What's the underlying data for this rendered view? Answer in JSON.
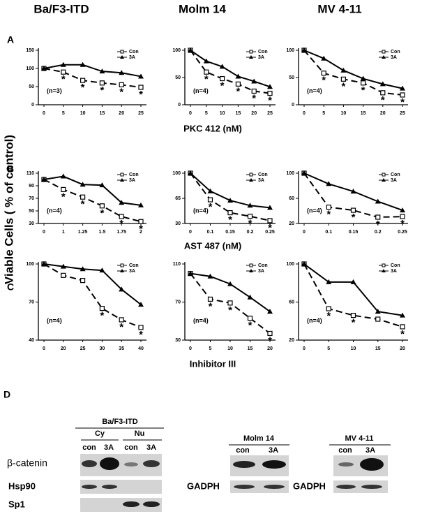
{
  "columns": [
    "Ba/F3-ITD",
    "Molm 14",
    "MV 4-11"
  ],
  "panels": [
    "A",
    "B",
    "C",
    "D"
  ],
  "y_axis_label": "Viable Cells ( % of control)",
  "row_axis_labels": [
    "PKC 412 (nM)",
    "AST 487 (nM)",
    "Inhibitor III"
  ],
  "chart_data": [
    {
      "type": "line",
      "categories": [
        "0",
        "5",
        "10",
        "15",
        "20",
        "25"
      ],
      "ylim": [
        0,
        150
      ],
      "yticks": [
        0,
        50,
        100,
        150
      ],
      "note": "(n=3)",
      "legend": "upper right",
      "series": [
        {
          "name": "Con",
          "color": "#000",
          "line_style": "dashed",
          "marker": "square",
          "values": [
            100,
            90,
            67,
            60,
            55,
            48
          ]
        },
        {
          "name": "3A",
          "color": "#000",
          "line_style": "solid",
          "marker": "triangle",
          "values": [
            100,
            110,
            110,
            92,
            88,
            78
          ]
        }
      ],
      "annotations": [
        null,
        "*",
        "*",
        "*",
        "*",
        "*"
      ]
    },
    {
      "type": "line",
      "categories": [
        "0",
        "5",
        "10",
        "15",
        "20",
        "25"
      ],
      "ylim": [
        0,
        100
      ],
      "yticks": [
        0,
        50,
        100
      ],
      "note": "(n=4)",
      "legend": "upper right",
      "series": [
        {
          "name": "Con",
          "color": "#000",
          "line_style": "dashed",
          "marker": "square",
          "values": [
            100,
            60,
            48,
            38,
            25,
            21
          ]
        },
        {
          "name": "3A",
          "color": "#000",
          "line_style": "solid",
          "marker": "triangle",
          "values": [
            100,
            80,
            70,
            52,
            43,
            33
          ]
        }
      ],
      "annotations": [
        null,
        "*",
        "*",
        "*",
        "*",
        "*"
      ]
    },
    {
      "type": "line",
      "categories": [
        "0",
        "5",
        "10",
        "15",
        "20",
        "25"
      ],
      "ylim": [
        0,
        100
      ],
      "yticks": [
        0,
        50,
        100
      ],
      "note": "(n=4)",
      "legend": "upper right",
      "series": [
        {
          "name": "Con",
          "color": "#000",
          "line_style": "dashed",
          "marker": "square",
          "values": [
            100,
            58,
            47,
            40,
            22,
            18
          ]
        },
        {
          "name": "3A",
          "color": "#000",
          "line_style": "solid",
          "marker": "triangle",
          "values": [
            100,
            85,
            63,
            48,
            38,
            30
          ]
        }
      ],
      "annotations": [
        null,
        "*",
        "*",
        "*",
        "*",
        "*"
      ]
    },
    {
      "type": "line",
      "categories": [
        "0",
        "1",
        "1.25",
        "1.5",
        "1.75",
        "2"
      ],
      "ylim": [
        30,
        110
      ],
      "yticks": [
        30,
        50,
        70,
        90,
        110
      ],
      "note": "(n=4)",
      "legend": "upper right",
      "series": [
        {
          "name": "Con",
          "color": "#000",
          "line_style": "dashed",
          "marker": "square",
          "values": [
            100,
            84,
            72,
            58,
            41,
            33
          ]
        },
        {
          "name": "3A",
          "color": "#000",
          "line_style": "solid",
          "marker": "triangle",
          "values": [
            100,
            105,
            92,
            91,
            63,
            59
          ]
        }
      ],
      "annotations": [
        null,
        "*",
        "*",
        "*",
        "*",
        "*"
      ]
    },
    {
      "type": "line",
      "categories": [
        "0",
        "0.1",
        "0.15",
        "0.2",
        "0.25"
      ],
      "ylim": [
        30,
        100
      ],
      "yticks": [
        30,
        65,
        100
      ],
      "note": "(n=4)",
      "legend": "upper right",
      "series": [
        {
          "name": "Con",
          "color": "#000",
          "line_style": "dashed",
          "marker": "square",
          "values": [
            100,
            63,
            45,
            40,
            34
          ]
        },
        {
          "name": "3A",
          "color": "#000",
          "line_style": "solid",
          "marker": "triangle",
          "values": [
            100,
            75,
            62,
            55,
            52
          ]
        }
      ],
      "annotations": [
        null,
        "*",
        "*",
        "*",
        "*"
      ]
    },
    {
      "type": "line",
      "categories": [
        "0",
        "0.1",
        "0.15",
        "0.2",
        "0.25"
      ],
      "ylim": [
        20,
        100
      ],
      "yticks": [
        20,
        60,
        100
      ],
      "note": "(n=4)",
      "legend": "upper right",
      "series": [
        {
          "name": "Con",
          "color": "#000",
          "line_style": "dashed",
          "marker": "square",
          "values": [
            100,
            46,
            41,
            30,
            31
          ]
        },
        {
          "name": "3A",
          "color": "#000",
          "line_style": "solid",
          "marker": "triangle",
          "values": [
            100,
            83,
            71,
            55,
            41
          ]
        }
      ],
      "annotations": [
        null,
        "*",
        "*",
        "*",
        "*"
      ]
    },
    {
      "type": "line",
      "categories": [
        "0",
        "20",
        "25",
        "30",
        "35",
        "40"
      ],
      "ylim": [
        40,
        100
      ],
      "yticks": [
        40,
        70,
        100
      ],
      "note": "(n=4)",
      "legend": "upper right",
      "series": [
        {
          "name": "Con",
          "color": "#000",
          "line_style": "dashed",
          "marker": "square",
          "values": [
            100,
            91,
            87,
            65,
            56,
            50
          ]
        },
        {
          "name": "3A",
          "color": "#000",
          "line_style": "solid",
          "marker": "triangle",
          "values": [
            100,
            98,
            96,
            95,
            80,
            68
          ]
        }
      ],
      "annotations": [
        null,
        null,
        null,
        "*",
        "*",
        "*"
      ]
    },
    {
      "type": "line",
      "categories": [
        "0",
        "5",
        "10",
        "15",
        "20"
      ],
      "ylim": [
        30,
        110
      ],
      "yticks": [
        30,
        70,
        110
      ],
      "note": "(n=4)",
      "legend": "upper right",
      "series": [
        {
          "name": "Con",
          "color": "#000",
          "line_style": "dashed",
          "marker": "square",
          "values": [
            100,
            73,
            69,
            53,
            37
          ]
        },
        {
          "name": "3A",
          "color": "#000",
          "line_style": "solid",
          "marker": "triangle",
          "values": [
            100,
            97,
            89,
            75,
            60
          ]
        }
      ],
      "annotations": [
        null,
        "*",
        "*",
        "*",
        "*"
      ]
    },
    {
      "type": "line",
      "categories": [
        "0",
        "5",
        "10",
        "15",
        "20"
      ],
      "ylim": [
        20,
        100
      ],
      "yticks": [
        20,
        60,
        100
      ],
      "note": "(n=4)",
      "legend": "upper right",
      "series": [
        {
          "name": "Con",
          "color": "#000",
          "line_style": "dashed",
          "marker": "square",
          "values": [
            100,
            53,
            46,
            42,
            34
          ]
        },
        {
          "name": "3A",
          "color": "#000",
          "line_style": "solid",
          "marker": "triangle",
          "values": [
            100,
            81,
            81,
            50,
            46
          ]
        }
      ],
      "annotations": [
        null,
        "*",
        "*",
        null,
        "*"
      ]
    }
  ],
  "blots": {
    "group1": {
      "title": "Ba/F3-ITD",
      "fractions": [
        "Cy",
        "Nu"
      ],
      "lanes": [
        "con",
        "3A",
        "con",
        "3A"
      ],
      "rows": [
        "β-catenin",
        "Hsp90",
        "Sp1"
      ]
    },
    "group2": {
      "title": "Molm 14",
      "lanes": [
        "con",
        "3A"
      ],
      "rows": [
        "GADPH"
      ]
    },
    "group3": {
      "title": "MV 4-11",
      "lanes": [
        "con",
        "3A"
      ],
      "rows": [
        "GADPH"
      ]
    }
  }
}
